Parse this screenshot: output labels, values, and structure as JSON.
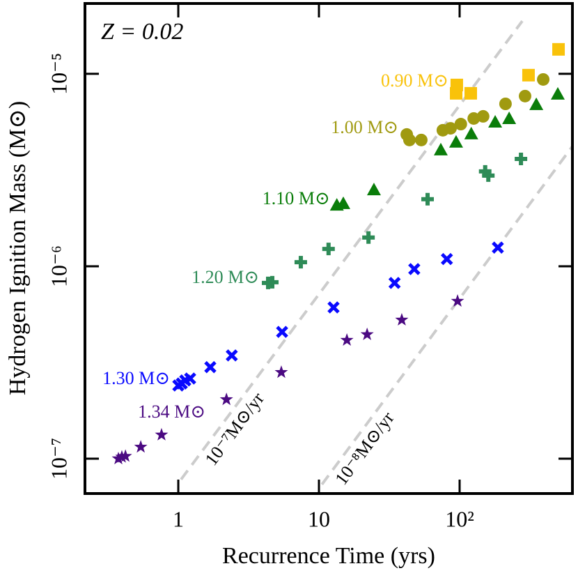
{
  "chart_data": {
    "type": "scatter",
    "annotation": "Z = 0.02",
    "x_label": "Recurrence Time (yrs)",
    "y_label": "Hydrogen Ignition Mass (M⊙)",
    "xscale": "log",
    "yscale": "log",
    "xlim": [
      0.217,
      634
    ],
    "ylim": [
      6.59e-08,
      2.32e-05
    ],
    "xticks": [
      1,
      10,
      {
        "value": 100,
        "label": "10²"
      }
    ],
    "yticks": [
      {
        "value": 1e-07,
        "label": "10⁻⁷"
      },
      {
        "value": 1e-06,
        "label": "10⁻⁶"
      },
      {
        "value": 1e-05,
        "label": "10⁻⁵"
      }
    ],
    "guides": [
      {
        "name": "10⁻⁷M⊙/yr",
        "x": [
          1.046,
          279
        ],
        "y": [
          7.8e-08,
          1.88e-05
        ]
      },
      {
        "name": "10⁻⁸M⊙/yr",
        "x": [
          10.5,
          634
        ],
        "y": [
          7.35e-08,
          4.2e-06
        ]
      }
    ],
    "series": [
      {
        "name": "0.90 M⊙",
        "color": "#f9c20a",
        "marker": "square",
        "x": [
          95.5,
          94.5,
          120,
          309,
          505
        ],
        "values": [
          8.75e-06,
          7.92e-06,
          7.92e-06,
          9.84e-06,
          1.34e-05
        ]
      },
      {
        "name": "1.00 M⊙",
        "color": "#a09a10",
        "marker": "circle",
        "x": [
          42.1,
          44.0,
          53.4,
          76.0,
          86.2,
          102,
          126,
          147,
          212,
          292,
          393
        ],
        "values": [
          4.84e-06,
          4.53e-06,
          4.53e-06,
          5.09e-06,
          5.21e-06,
          5.48e-06,
          5.86e-06,
          6.01e-06,
          6.98e-06,
          7.66e-06,
          9.35e-06
        ]
      },
      {
        "name": "1.10 M⊙",
        "color": "#0a7d0a",
        "marker": "triangle",
        "x": [
          13.4,
          14.9,
          24.6,
          73.5,
          94.4,
          121,
          179,
          225,
          351,
          499
        ],
        "values": [
          2.08e-06,
          2.12e-06,
          2.5e-06,
          4.03e-06,
          4.42e-06,
          4.88e-06,
          5.62e-06,
          5.86e-06,
          6.93e-06,
          7.85e-06
        ]
      },
      {
        "name": "1.20 M⊙",
        "color": "#2e8b57",
        "marker": "plus",
        "x": [
          4.35,
          4.66,
          7.43,
          11.7,
          22.5,
          59.2,
          152,
          160,
          273
        ],
        "values": [
          8.19e-07,
          8.26e-07,
          1.05e-06,
          1.23e-06,
          1.41e-06,
          2.23e-06,
          3.11e-06,
          2.96e-06,
          3.61e-06
        ]
      },
      {
        "name": "1.30 M⊙",
        "color": "#0a0aff",
        "marker": "x",
        "x": [
          1.0,
          1.059,
          1.121,
          1.214,
          1.689,
          2.4,
          5.47,
          12.7,
          34.5,
          47.6,
          81.2,
          187
        ],
        "values": [
          2.4e-07,
          2.46e-07,
          2.55e-07,
          2.61e-07,
          2.99e-07,
          3.44e-07,
          4.56e-07,
          6.11e-07,
          8.19e-07,
          9.67e-07,
          1.09e-06,
          1.25e-06
        ]
      },
      {
        "name": "1.34 M⊙",
        "color": "#4b0a82",
        "marker": "star",
        "x": [
          0.375,
          0.397,
          0.421,
          0.541,
          0.76,
          2.2,
          5.4,
          15.8,
          22.0,
          38.8,
          96.7
        ],
        "values": [
          1e-07,
          1.02e-07,
          1.03e-07,
          1.15e-07,
          1.33e-07,
          2.03e-07,
          2.81e-07,
          4.13e-07,
          4.42e-07,
          5.26e-07,
          6.59e-07
        ]
      }
    ]
  }
}
